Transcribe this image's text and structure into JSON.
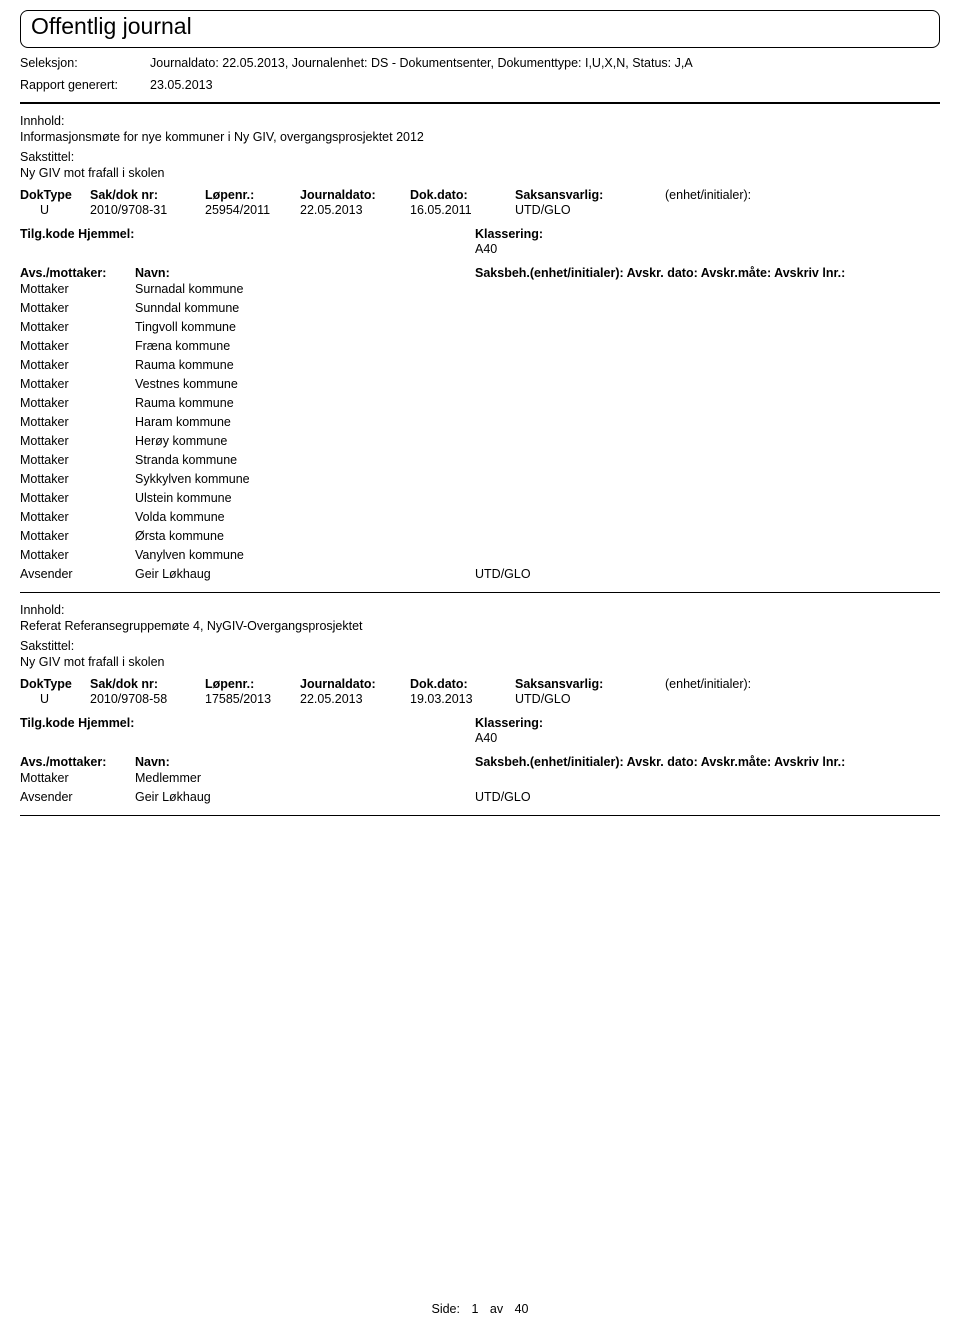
{
  "header": {
    "title": "Offentlig journal",
    "seleksjon_label": "Seleksjon:",
    "seleksjon_value": "Journaldato: 22.05.2013, Journalenhet: DS - Dokumentsenter, Dokumenttype: I,U,X,N, Status: J,A",
    "rapport_label": "Rapport generert:",
    "rapport_value": "23.05.2013"
  },
  "labels": {
    "innhold": "Innhold:",
    "sakstittel": "Sakstittel:",
    "doktype": "DokType",
    "sakdok": "Sak/dok nr:",
    "lopenr": "Løpenr.:",
    "journaldato": "Journaldato:",
    "dokdato": "Dok.dato:",
    "saksansvarlig": "Saksansvarlig:",
    "enhet": "(enhet/initialer):",
    "tilgkode": "Tilg.kode",
    "hjemmel": "Hjemmel:",
    "klassering": "Klassering:",
    "avsmottaker": "Avs./mottaker:",
    "navn": "Navn:",
    "saksbeh_hdr": "Saksbeh.(enhet/initialer): Avskr. dato: Avskr.måte: Avskriv lnr.:"
  },
  "entry1": {
    "innhold": "Informasjonsmøte for nye kommuner i Ny GIV, overgangsprosjektet 2012",
    "sakstittel": "Ny GIV mot frafall i skolen",
    "doktype": "U",
    "sakdok": "2010/9708-31",
    "lopenr": "25954/2011",
    "journaldato": "22.05.2013",
    "dokdato": "16.05.2011",
    "saksansvarlig": "UTD/GLO",
    "klassering": "A40",
    "parties": [
      {
        "role": "Mottaker",
        "navn": "Surnadal kommune",
        "beh": ""
      },
      {
        "role": "Mottaker",
        "navn": "Sunndal kommune",
        "beh": ""
      },
      {
        "role": "Mottaker",
        "navn": "Tingvoll kommune",
        "beh": ""
      },
      {
        "role": "Mottaker",
        "navn": "Fræna kommune",
        "beh": ""
      },
      {
        "role": "Mottaker",
        "navn": "Rauma kommune",
        "beh": ""
      },
      {
        "role": "Mottaker",
        "navn": "Vestnes kommune",
        "beh": ""
      },
      {
        "role": "Mottaker",
        "navn": "Rauma kommune",
        "beh": ""
      },
      {
        "role": "Mottaker",
        "navn": "Haram kommune",
        "beh": ""
      },
      {
        "role": "Mottaker",
        "navn": "Herøy kommune",
        "beh": ""
      },
      {
        "role": "Mottaker",
        "navn": "Stranda kommune",
        "beh": ""
      },
      {
        "role": "Mottaker",
        "navn": "Sykkylven kommune",
        "beh": ""
      },
      {
        "role": "Mottaker",
        "navn": "Ulstein kommune",
        "beh": ""
      },
      {
        "role": "Mottaker",
        "navn": "Volda kommune",
        "beh": ""
      },
      {
        "role": "Mottaker",
        "navn": "Ørsta kommune",
        "beh": ""
      },
      {
        "role": "Mottaker",
        "navn": "Vanylven kommune",
        "beh": ""
      },
      {
        "role": "Avsender",
        "navn": "Geir Løkhaug",
        "beh": "UTD/GLO"
      }
    ]
  },
  "entry2": {
    "innhold": "Referat Referansegruppemøte 4, NyGIV-Overgangsprosjektet",
    "sakstittel": "Ny GIV mot frafall i skolen",
    "doktype": "U",
    "sakdok": "2010/9708-58",
    "lopenr": "17585/2013",
    "journaldato": "22.05.2013",
    "dokdato": "19.03.2013",
    "saksansvarlig": "UTD/GLO",
    "klassering": "A40",
    "parties": [
      {
        "role": "Mottaker",
        "navn": "Medlemmer",
        "beh": ""
      },
      {
        "role": "Avsender",
        "navn": "Geir Løkhaug",
        "beh": "UTD/GLO"
      }
    ]
  },
  "footer": {
    "side_label": "Side:",
    "page_current": "1",
    "av": "av",
    "page_total": "40"
  }
}
